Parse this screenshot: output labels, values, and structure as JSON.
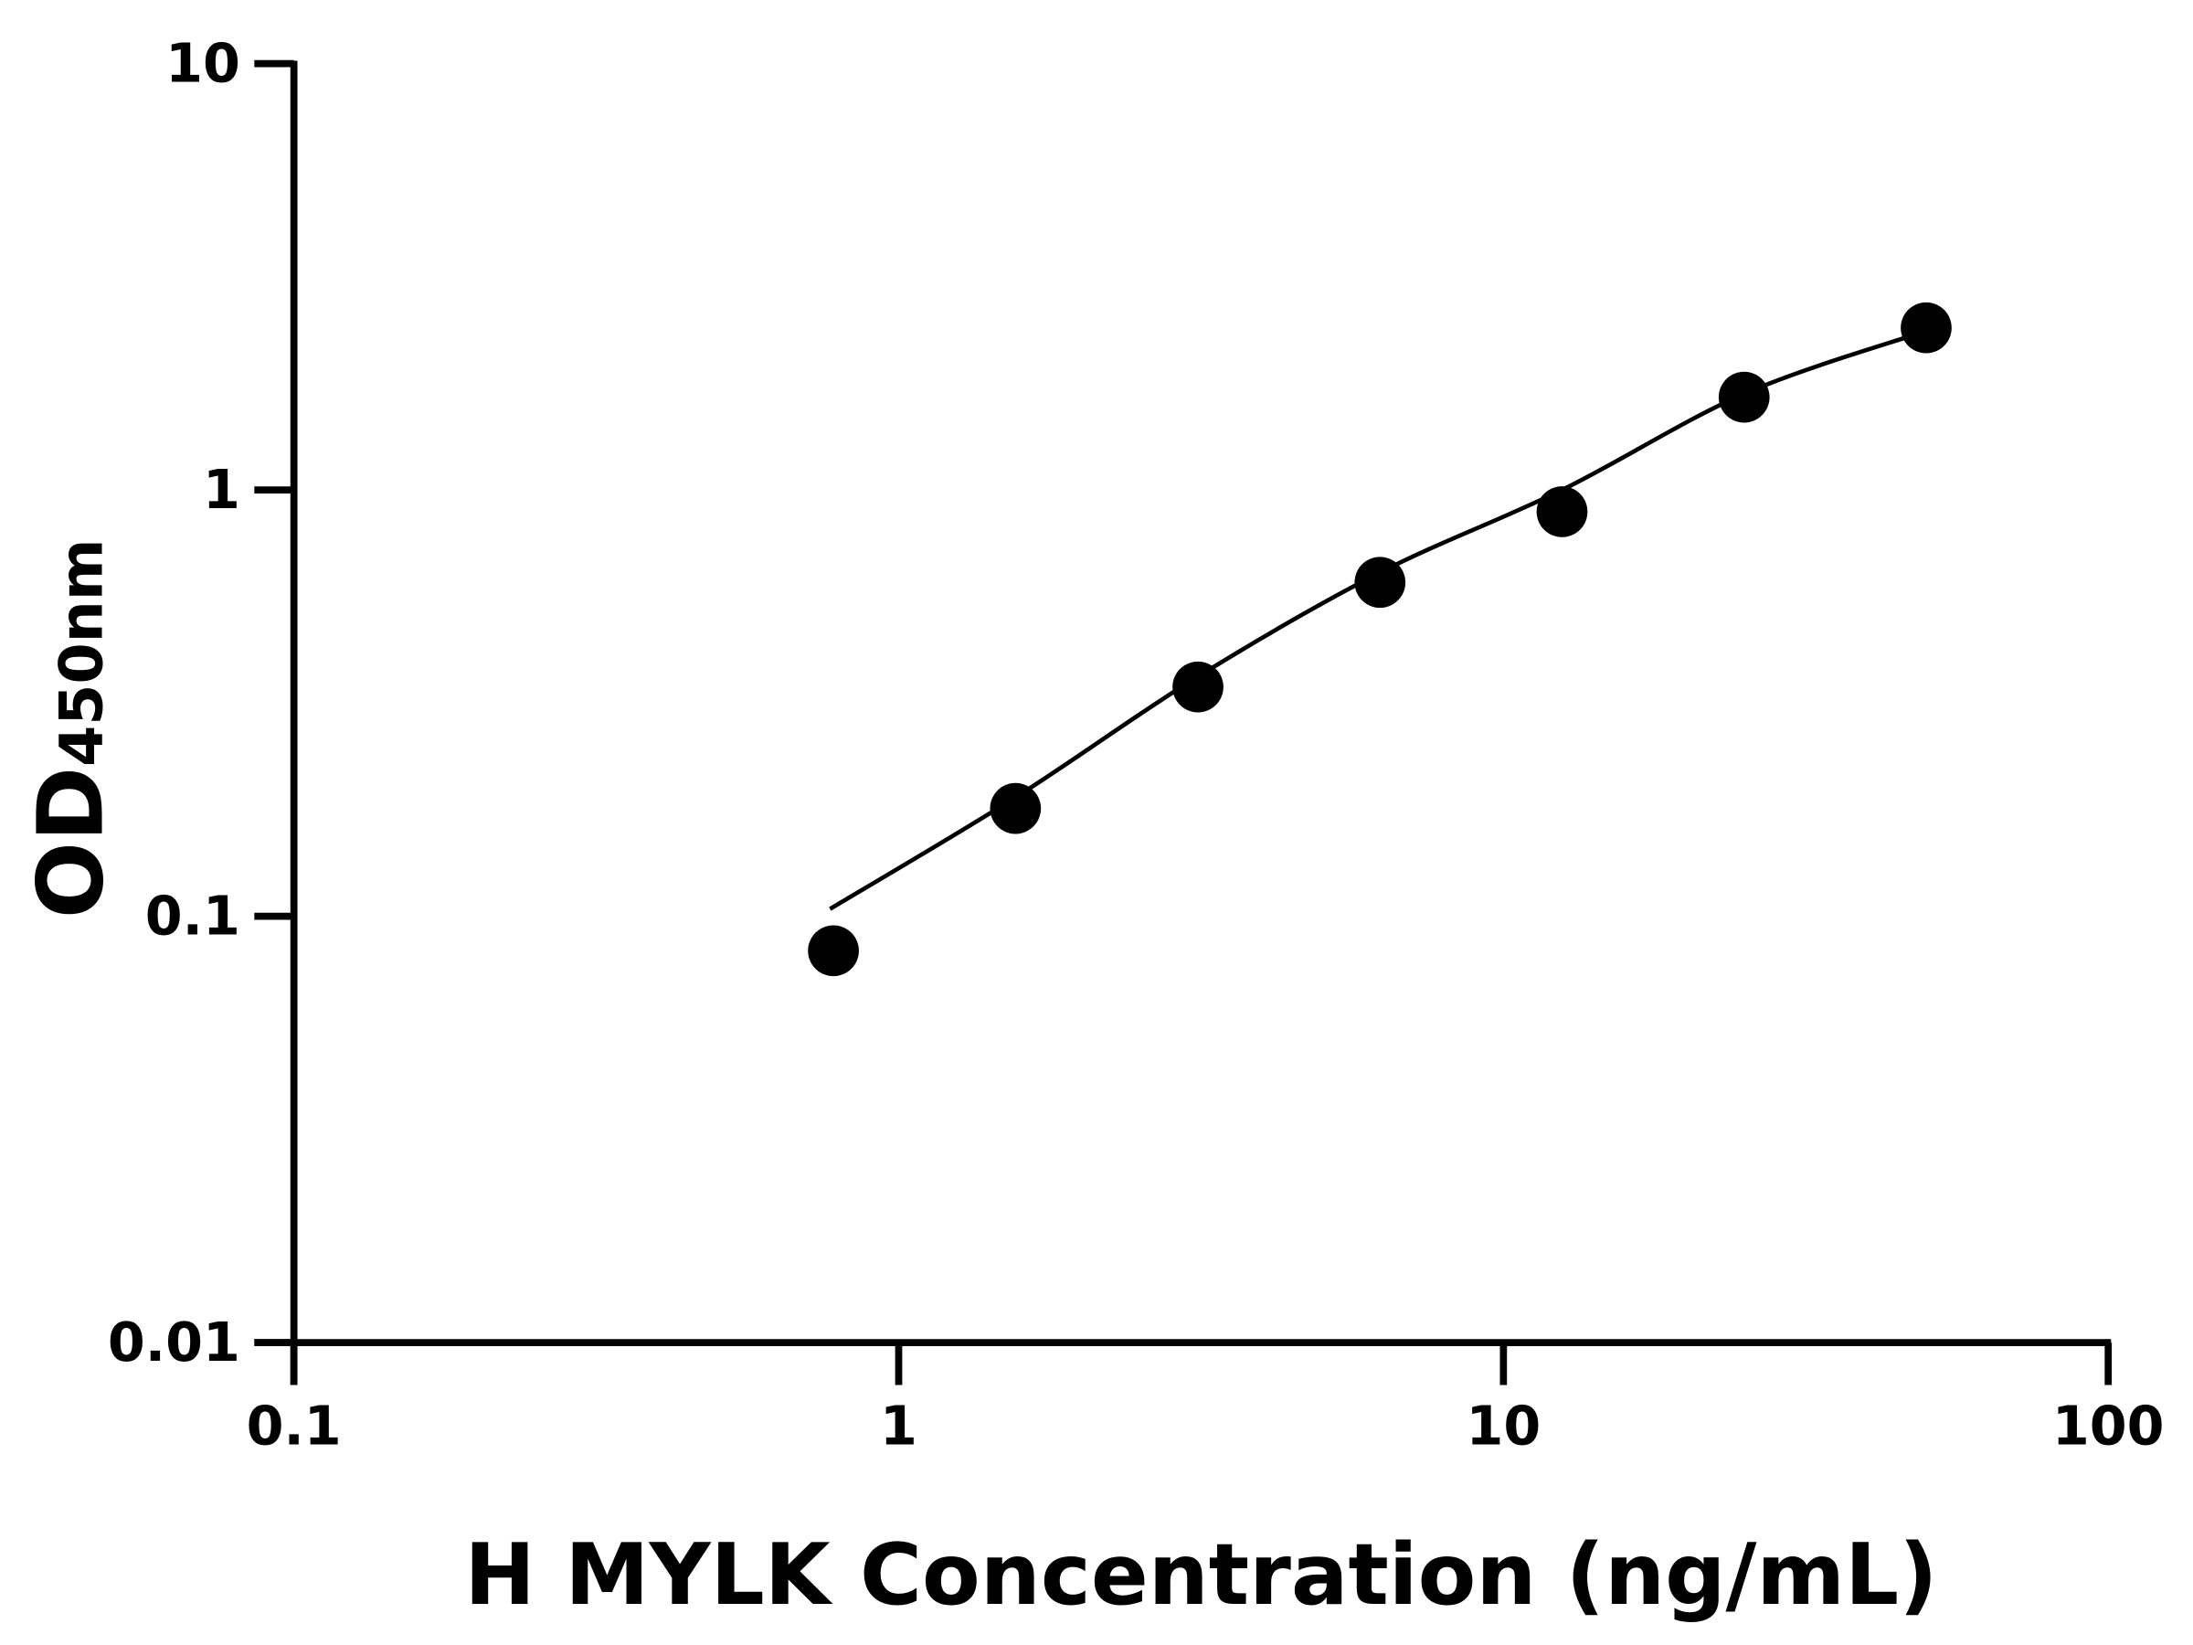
{
  "chart_data": {
    "type": "scatter",
    "title": "",
    "xlabel": "H MYLK Concentration (ng/mL)",
    "ylabel_main": "OD",
    "ylabel_sub": "450nm",
    "xscale": "log",
    "yscale": "log",
    "xlim": [
      0.1,
      100
    ],
    "ylim": [
      0.01,
      10
    ],
    "xticks": [
      "0.1",
      "1",
      "10",
      "100"
    ],
    "yticks": [
      "0.01",
      "0.1",
      "1",
      "10"
    ],
    "grid": false,
    "series": [
      {
        "x": [
          0.78,
          1.56,
          3.125,
          6.25,
          12.5,
          25,
          50
        ],
        "y": [
          0.083,
          0.179,
          0.345,
          0.607,
          0.889,
          1.65,
          2.4
        ]
      }
    ],
    "fit_curve": {
      "x": [
        0.77,
        1.56,
        3.125,
        6.25,
        12.5,
        25,
        50
      ],
      "y": [
        0.104,
        0.19,
        0.365,
        0.64,
        1.0,
        1.68,
        2.36
      ]
    },
    "colors": {
      "marker": "#000000",
      "line": "#000000",
      "axis": "#000000"
    }
  }
}
